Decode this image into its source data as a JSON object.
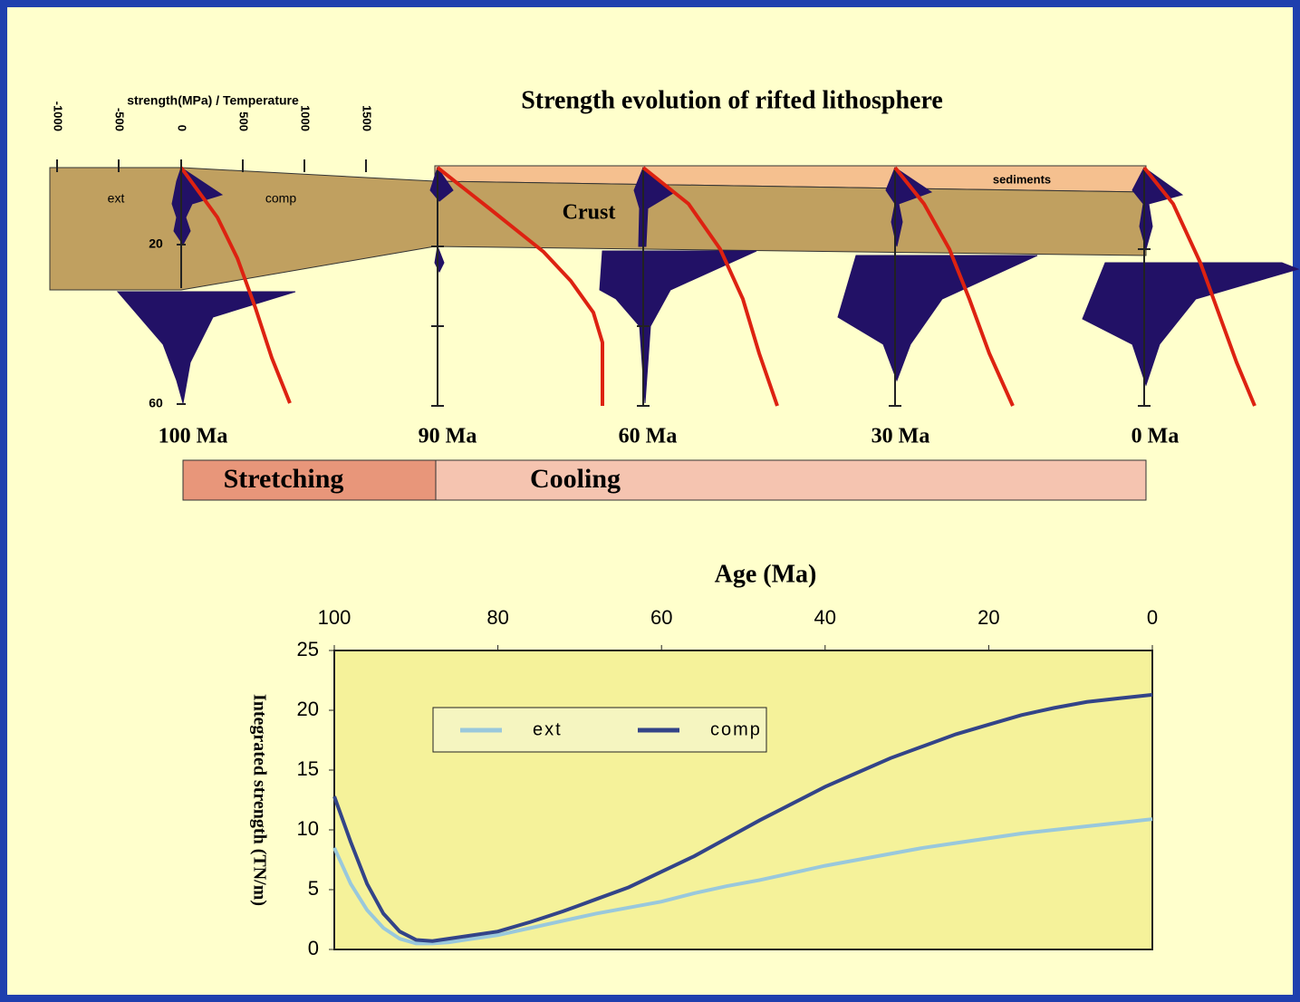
{
  "diagram": {
    "title": "Strength evolution of rifted lithosphere",
    "axis_label": "strength(MPa) / Temperature",
    "axis_ticks": [
      -1000,
      -500,
      0,
      500,
      1000,
      1500
    ],
    "labels": {
      "ext": "ext",
      "comp": "comp",
      "crust": "Crust",
      "sediments": "sediments"
    },
    "depth_ticks": [
      20,
      60
    ],
    "ages": [
      "100 Ma",
      "90 Ma",
      "60 Ma",
      "30 Ma",
      "0 Ma"
    ],
    "phases": [
      "Stretching",
      "Cooling"
    ]
  },
  "chart_data": {
    "type": "line",
    "xlabel": "Age (Ma)",
    "ylabel": "Integrated strength (TN/m)",
    "x": [
      100,
      98,
      96,
      94,
      92,
      90,
      88,
      86,
      84,
      80,
      76,
      72,
      68,
      64,
      60,
      56,
      52,
      48,
      44,
      40,
      36,
      32,
      28,
      24,
      20,
      16,
      12,
      8,
      4,
      0
    ],
    "series": [
      {
        "name": "ext",
        "color": "#99c8dc",
        "values": [
          8.5,
          5.5,
          3.3,
          1.8,
          0.9,
          0.5,
          0.5,
          0.6,
          0.8,
          1.2,
          1.8,
          2.4,
          3,
          3.5,
          4,
          4.7,
          5.3,
          5.8,
          6.4,
          7,
          7.5,
          8,
          8.5,
          8.9,
          9.3,
          9.7,
          10,
          10.3,
          10.6,
          10.9
        ]
      },
      {
        "name": "comp",
        "color": "#334488",
        "values": [
          12.8,
          9,
          5.5,
          3,
          1.5,
          0.8,
          0.7,
          0.9,
          1.1,
          1.5,
          2.3,
          3.2,
          4.2,
          5.2,
          6.5,
          7.8,
          9.3,
          10.8,
          12.2,
          13.6,
          14.8,
          16,
          17,
          18,
          18.8,
          19.6,
          20.2,
          20.7,
          21,
          21.3
        ]
      }
    ],
    "xlim": [
      100,
      0
    ],
    "xticks": [
      100,
      80,
      60,
      40,
      20,
      0
    ],
    "ylim": [
      0,
      25
    ],
    "yticks": [
      0,
      5,
      10,
      15,
      20,
      25
    ]
  }
}
